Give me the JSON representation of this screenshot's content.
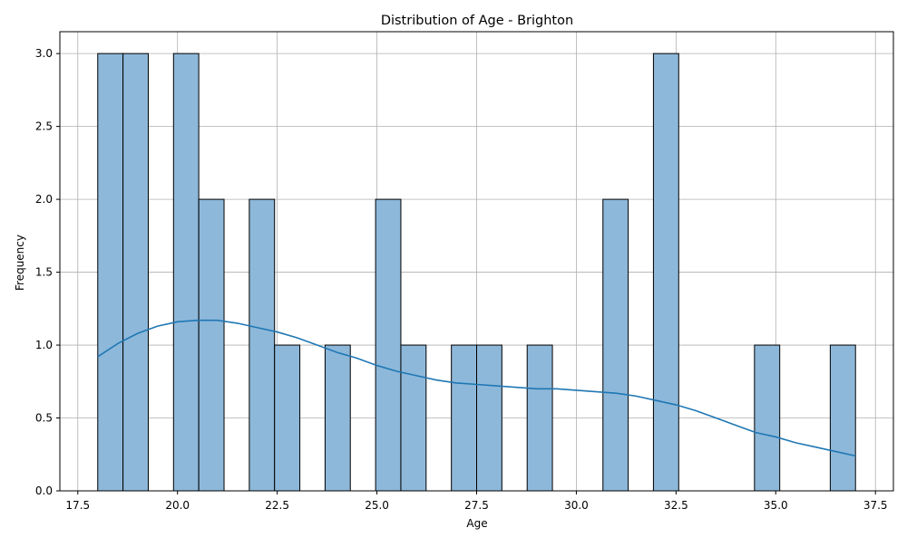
{
  "chart_data": {
    "type": "bar",
    "title": "Distribution of Age - Brighton",
    "xlabel": "Age",
    "ylabel": "Frequency",
    "xlim": [
      17.05,
      37.95
    ],
    "ylim": [
      0,
      3.15
    ],
    "xticks": [
      17.5,
      20.0,
      22.5,
      25.0,
      27.5,
      30.0,
      32.5,
      35.0,
      37.5
    ],
    "xtick_labels": [
      "17.5",
      "20.0",
      "22.5",
      "25.0",
      "27.5",
      "30.0",
      "32.5",
      "35.0",
      "37.5"
    ],
    "yticks": [
      0,
      0.5,
      1.0,
      1.5,
      2.0,
      2.5,
      3.0
    ],
    "ytick_labels": [
      "0.0",
      "0.5",
      "1.0",
      "1.5",
      "2.0",
      "2.5",
      "3.0"
    ],
    "grid": true,
    "bin_edges": [
      18.0,
      18.633,
      19.267,
      19.9,
      20.533,
      21.167,
      21.8,
      22.433,
      23.067,
      23.7,
      24.333,
      24.967,
      25.6,
      26.233,
      26.867,
      27.5,
      28.133,
      28.767,
      29.4,
      30.033,
      30.667,
      31.3,
      31.933,
      32.567,
      33.2,
      33.833,
      34.467,
      35.1,
      35.733,
      36.367,
      37.0
    ],
    "counts": [
      3,
      3,
      0,
      3,
      2,
      0,
      2,
      1,
      0,
      1,
      0,
      2,
      1,
      0,
      1,
      1,
      0,
      1,
      0,
      0,
      2,
      0,
      3,
      0,
      0,
      0,
      1,
      0,
      0,
      1
    ],
    "kde": {
      "x": [
        18.0,
        18.5,
        19.0,
        19.5,
        20.0,
        20.5,
        21.0,
        21.5,
        22.0,
        22.5,
        23.0,
        23.5,
        24.0,
        24.5,
        25.0,
        25.5,
        26.0,
        26.5,
        27.0,
        27.5,
        28.0,
        28.5,
        29.0,
        29.5,
        30.0,
        30.5,
        31.0,
        31.5,
        32.0,
        32.5,
        33.0,
        33.5,
        34.0,
        34.5,
        35.0,
        35.5,
        36.0,
        36.5,
        37.0
      ],
      "y": [
        0.92,
        1.01,
        1.08,
        1.13,
        1.16,
        1.17,
        1.17,
        1.15,
        1.12,
        1.09,
        1.05,
        1.0,
        0.95,
        0.91,
        0.86,
        0.82,
        0.79,
        0.76,
        0.74,
        0.73,
        0.72,
        0.71,
        0.7,
        0.7,
        0.69,
        0.68,
        0.67,
        0.65,
        0.62,
        0.59,
        0.55,
        0.5,
        0.45,
        0.4,
        0.37,
        0.33,
        0.3,
        0.27,
        0.24
      ]
    },
    "colors": {
      "bar_fill": "#8db8da",
      "bar_edge": "#000000",
      "kde_line": "#1f77b4",
      "grid": "#b0b0b0"
    }
  }
}
